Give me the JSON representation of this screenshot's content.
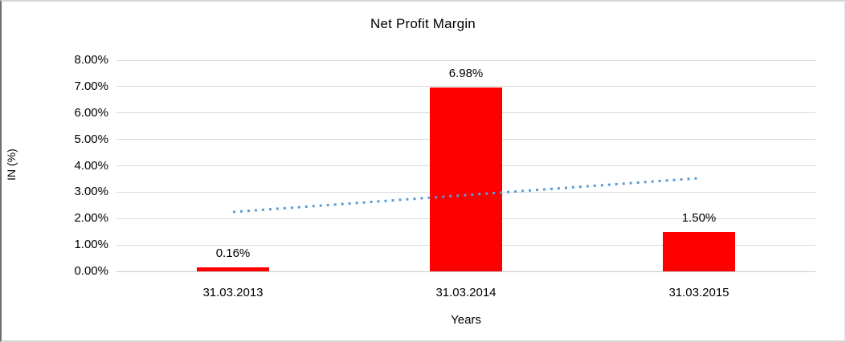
{
  "chart_data": {
    "type": "bar",
    "title": "Net Profit Margin",
    "xlabel": "Years",
    "ylabel": "IN (%)",
    "categories": [
      "31.03.2013",
      "31.03.2014",
      "31.03.2015"
    ],
    "values": [
      0.16,
      6.98,
      1.5
    ],
    "data_labels": [
      "0.16%",
      "6.98%",
      "1.50%"
    ],
    "ylim": [
      0,
      8
    ],
    "ytick_labels": [
      "0.00%",
      "1.00%",
      "2.00%",
      "3.00%",
      "4.00%",
      "5.00%",
      "6.00%",
      "7.00%",
      "8.00%"
    ],
    "grid": true,
    "legend": "none",
    "colors": {
      "bar": "#FF0000",
      "gridline": "#D9D9D9",
      "axis_line": "#C9C9C9",
      "trendline": "#5B9BD5",
      "text": "#000000",
      "frame_border": "#D6D6D6"
    },
    "trendline": {
      "style": "dotted",
      "color": "#5B9BD5",
      "start_category_index": 0,
      "start_value": 2.25,
      "end_category_index": 2,
      "end_value": 3.53
    }
  }
}
